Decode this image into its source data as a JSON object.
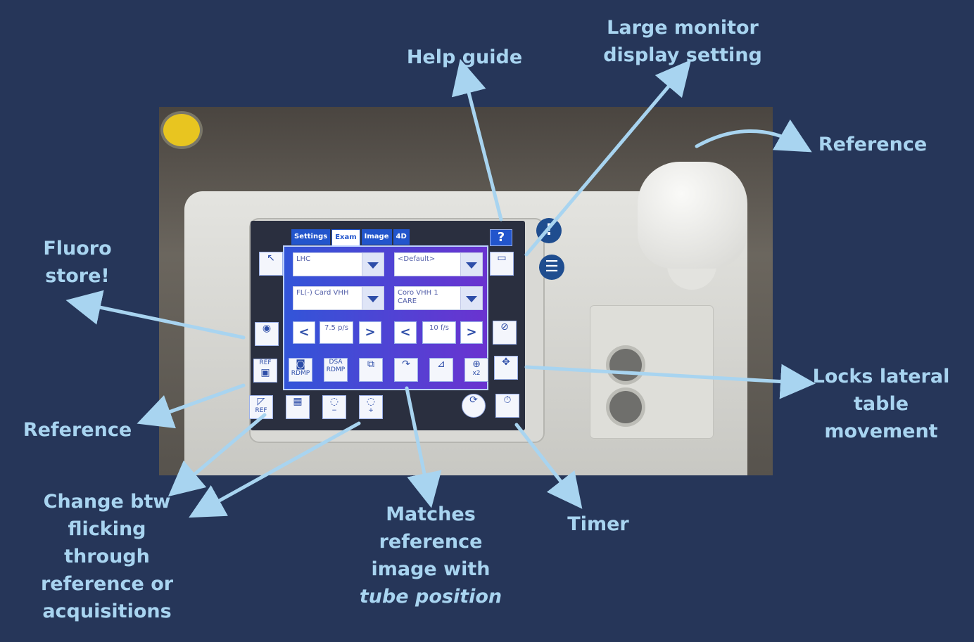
{
  "annotations": {
    "help_guide": "Help guide",
    "large_monitor": [
      "Large monitor",
      "display setting"
    ],
    "reference_top": "Reference",
    "fluoro_store": [
      "Fluoro",
      "store!"
    ],
    "reference_left": "Reference",
    "locks_lateral": [
      "Locks lateral",
      "table",
      "movement"
    ],
    "change_btw": [
      "Change btw",
      "flicking",
      "through",
      "reference or",
      "acquisitions"
    ],
    "matches_ref": [
      "Matches",
      "reference",
      "image with"
    ],
    "matches_ref_italic": "tube position",
    "timer": "Timer"
  },
  "screen": {
    "tabs": [
      "Settings",
      "Exam",
      "Image",
      "4D"
    ],
    "active_tab": "Exam",
    "help_label": "?",
    "procedure_field": "LHC",
    "procedure_more": "...",
    "preset_field": "<Default>",
    "fluoro_program": "FL(-) Card VHH",
    "acq_program_line1": "Coro VHH 1",
    "acq_program_line2": "CARE",
    "fluoro_rate": "7.5 p/s",
    "acq_rate": "10 f/s",
    "rdmp_label": "RDMP",
    "dsa_label": "DSA",
    "dsa_rdmp_label": "RDMP",
    "ref_label": "REF",
    "ref_corner_label": "REF",
    "x2_label": "x2",
    "minus": "−",
    "plus": "+",
    "prev": "<",
    "next": ">"
  },
  "colors": {
    "background": "#263659",
    "annotation": "#a8d4f0",
    "arrow": "#a8d4f0"
  }
}
